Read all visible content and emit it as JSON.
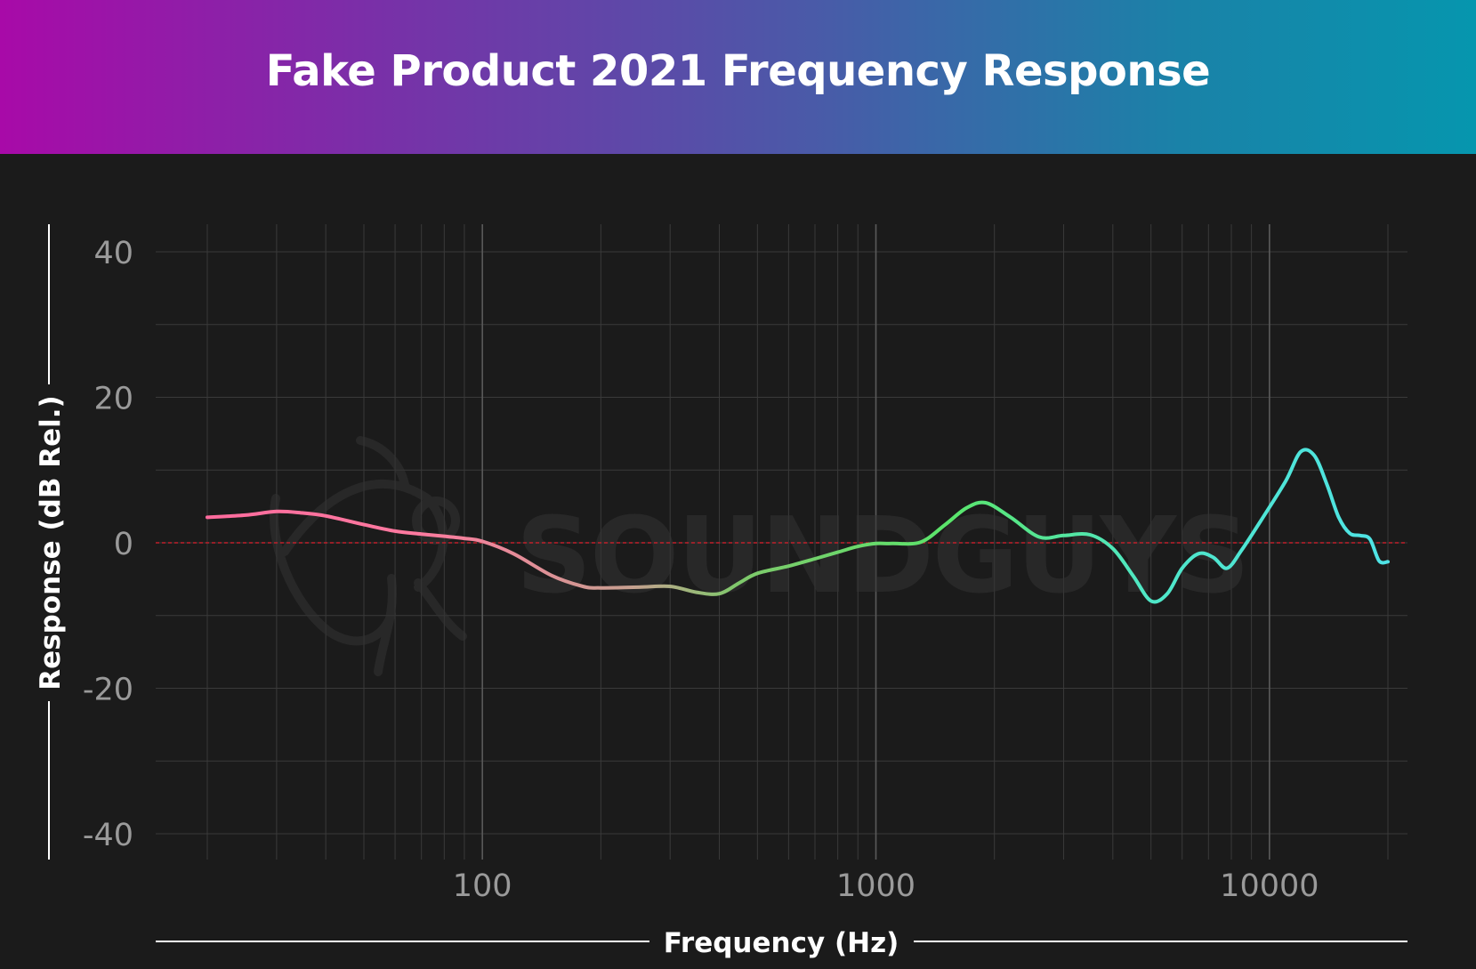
{
  "title": "Fake Product 2021 Frequency Response",
  "watermark": "SOUNDGUYS",
  "colors": {
    "banner_start": "#a80aa8",
    "banner_end": "#0696ae",
    "background": "#1b1b1b",
    "grid": "#3a3a3a",
    "zero_line": "#c0202a",
    "curve_low": "#ff6b9d",
    "curve_mid": "#5ae56b",
    "curve_high": "#4fe3e6"
  },
  "chart_data": {
    "type": "line",
    "title": "Fake Product 2021 Frequency Response",
    "xlabel": "Frequency (Hz)",
    "ylabel": "Response (dB Rel.)",
    "xscale": "log",
    "xlim": [
      20,
      20000
    ],
    "ylim": [
      -40,
      40
    ],
    "xticks": [
      100,
      1000,
      10000
    ],
    "xtick_labels": [
      "100",
      "1000",
      "10000"
    ],
    "yticks": [
      40,
      20,
      0,
      -20,
      -40
    ],
    "ytick_labels": [
      "40",
      "20",
      "0",
      "-20",
      "-40"
    ],
    "grid": true,
    "reference_line": 0,
    "series": [
      {
        "x": [
          20,
          25,
          30,
          35,
          40,
          50,
          60,
          70,
          80,
          90,
          100,
          120,
          150,
          180,
          200,
          250,
          300,
          350,
          400,
          450,
          500,
          600,
          700,
          800,
          900,
          1000,
          1100,
          1300,
          1500,
          1700,
          1900,
          2200,
          2600,
          3000,
          3500,
          4000,
          4500,
          5000,
          5500,
          6000,
          6600,
          7200,
          7800,
          8500,
          9500,
          11000,
          12000,
          13000,
          14000,
          15000,
          16000,
          17000,
          18000,
          19000,
          20000
        ],
        "y": [
          3.5,
          3.8,
          4.3,
          4.1,
          3.7,
          2.5,
          1.6,
          1.2,
          0.9,
          0.6,
          0.2,
          -1.5,
          -4.5,
          -6.0,
          -6.2,
          -6.1,
          -6.0,
          -6.8,
          -7.0,
          -5.5,
          -4.2,
          -3.2,
          -2.2,
          -1.3,
          -0.5,
          -0.1,
          -0.1,
          0.1,
          2.5,
          4.8,
          5.5,
          3.5,
          0.8,
          1.0,
          1.1,
          -0.8,
          -4.5,
          -8.0,
          -7.0,
          -3.5,
          -1.5,
          -2.0,
          -3.5,
          -1.0,
          3.0,
          8.5,
          12.5,
          12.0,
          8.0,
          3.5,
          1.3,
          1.0,
          0.5,
          -2.5,
          -2.6
        ]
      }
    ]
  }
}
